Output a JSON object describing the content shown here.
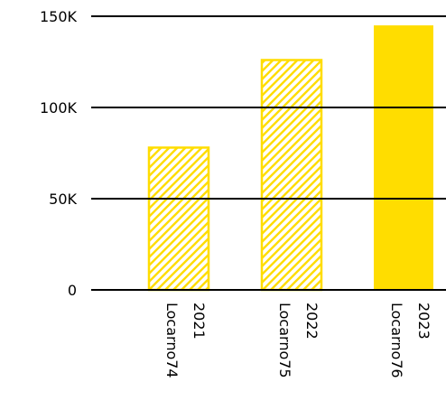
{
  "chart_data": {
    "type": "bar",
    "title": "",
    "xlabel": "",
    "ylabel": "",
    "categories": [
      {
        "line1": "2021",
        "line2": "Locarno74"
      },
      {
        "line1": "2022",
        "line2": "Locarno75"
      },
      {
        "line1": "2023",
        "line2": "Locarno76"
      }
    ],
    "values": [
      78000,
      126000,
      145000
    ],
    "styles": [
      "hatched",
      "hatched",
      "solid"
    ],
    "ylim": [
      0,
      150000
    ],
    "yticks": [
      {
        "value": 0,
        "label": "0"
      },
      {
        "value": 50000,
        "label": "50K"
      },
      {
        "value": 100000,
        "label": "100K"
      },
      {
        "value": 150000,
        "label": "150K"
      }
    ],
    "grid": true,
    "legend": "none",
    "colors": {
      "bar": "#ffdd00",
      "grid": "#000000",
      "text": "#000000"
    }
  }
}
